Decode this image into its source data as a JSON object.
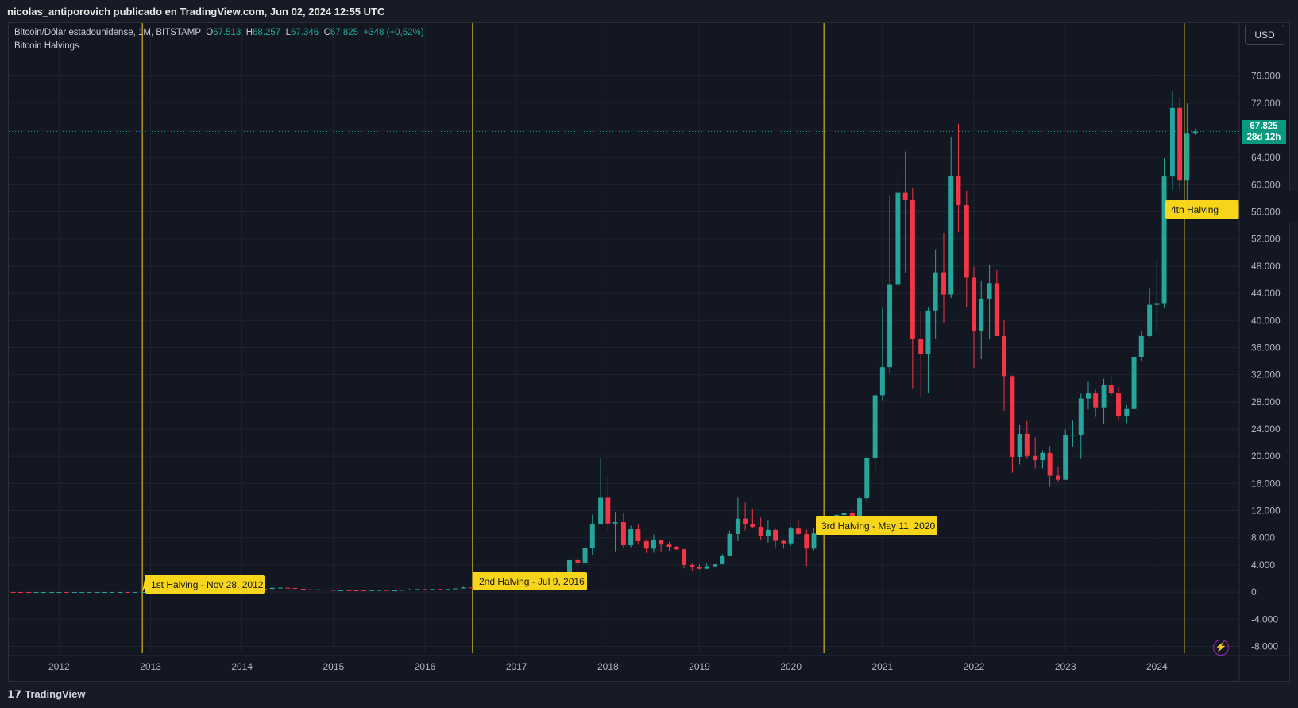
{
  "header": {
    "publisher": "nicolas_antiporovich publicado en TradingView.com, Jun 02, 2024 12:55 UTC"
  },
  "legend": {
    "symbol": "Bitcoin/Dólar estadounidense, 1M, BITSTAMP",
    "o_label": "O",
    "o_value": "67.513",
    "h_label": "H",
    "h_value": "68.257",
    "l_label": "L",
    "l_value": "67.346",
    "c_label": "C",
    "c_value": "67.825",
    "change": "+348 (+0,52%)",
    "indicator": "Bitcoin Halvings"
  },
  "currency_button": "USD",
  "last_price": {
    "price": "67.825",
    "countdown": "28d 12h"
  },
  "footer": {
    "brand": "TradingView"
  },
  "colors": {
    "up": "#26a69a",
    "down": "#f23645",
    "halving": "#f7d51b",
    "price_line": "#089981"
  },
  "chart_data": {
    "type": "candlestick",
    "interval": "1M",
    "y_ticks": [
      76000,
      72000,
      68000,
      64000,
      60000,
      56000,
      52000,
      48000,
      44000,
      40000,
      36000,
      32000,
      28000,
      24000,
      20000,
      16000,
      12000,
      8000,
      4000,
      0,
      -4000,
      -8000
    ],
    "y_tick_labels": [
      "76.000",
      "72.000",
      "",
      "64.000",
      "60.000",
      "56.000",
      "52.000",
      "48.000",
      "44.000",
      "40.000",
      "36.000",
      "32.000",
      "28.000",
      "24.000",
      "20.000",
      "16.000",
      "12.000",
      "8.000",
      "4.000",
      "0",
      "-4.000",
      "-8.000"
    ],
    "ylim": [
      -9000,
      79000
    ],
    "x_ticks": [
      2012,
      2013,
      2014,
      2015,
      2016,
      2017,
      2018,
      2019,
      2020,
      2021,
      2022,
      2023,
      2024
    ],
    "x_tick_labels": [
      "2012",
      "2013",
      "2014",
      "2015",
      "2016",
      "2017",
      "2018",
      "2019",
      "2020",
      "2021",
      "2022",
      "2023",
      "2024"
    ],
    "xlim": [
      2011.45,
      2024.9
    ],
    "last_close": 67825,
    "halvings": [
      {
        "x": 2012.91,
        "label": "1st Halving - Nov 28, 2012"
      },
      {
        "x": 2016.52,
        "label": "2nd Halving - Jul 9, 2016"
      },
      {
        "x": 2020.36,
        "label": "3rd Halving - May 11, 2020"
      },
      {
        "x": 2024.3,
        "label": "4th Halving"
      }
    ],
    "candles": [
      [
        2011.5,
        20,
        0,
        20,
        0
      ],
      [
        2011.58,
        5,
        20,
        0,
        3
      ],
      [
        2011.67,
        5,
        5,
        3,
        3
      ],
      [
        2011.75,
        3,
        5,
        2,
        3
      ],
      [
        2011.83,
        3,
        3,
        2,
        3
      ],
      [
        2011.92,
        3,
        5,
        3,
        5
      ],
      [
        2012.0,
        5,
        7,
        4,
        6
      ],
      [
        2012.08,
        6,
        6,
        4,
        5
      ],
      [
        2012.17,
        5,
        5,
        4,
        5
      ],
      [
        2012.25,
        5,
        5,
        4,
        5
      ],
      [
        2012.33,
        5,
        5,
        5,
        5
      ],
      [
        2012.42,
        5,
        7,
        5,
        7
      ],
      [
        2012.5,
        7,
        10,
        7,
        9
      ],
      [
        2012.58,
        9,
        16,
        7,
        10
      ],
      [
        2012.67,
        10,
        13,
        9,
        12
      ],
      [
        2012.75,
        12,
        13,
        10,
        11
      ],
      [
        2012.83,
        11,
        13,
        10,
        12
      ],
      [
        2012.92,
        12,
        14,
        12,
        13
      ],
      [
        2013.0,
        13,
        21,
        13,
        20
      ],
      [
        2013.08,
        20,
        34,
        19,
        33
      ],
      [
        2013.17,
        33,
        95,
        32,
        93
      ],
      [
        2013.25,
        93,
        260,
        50,
        139
      ],
      [
        2013.33,
        139,
        140,
        100,
        129
      ],
      [
        2013.42,
        129,
        130,
        89,
        97
      ],
      [
        2013.5,
        97,
        112,
        65,
        106
      ],
      [
        2013.58,
        106,
        130,
        99,
        129
      ],
      [
        2013.67,
        129,
        143,
        125,
        141
      ],
      [
        2013.75,
        141,
        215,
        109,
        205
      ],
      [
        2013.83,
        205,
        1160,
        202,
        1130
      ],
      [
        2013.92,
        1130,
        1240,
        520,
        760
      ],
      [
        2014.0,
        760,
        1010,
        740,
        835
      ],
      [
        2014.08,
        835,
        850,
        450,
        570
      ],
      [
        2014.17,
        570,
        680,
        440,
        460
      ],
      [
        2014.25,
        460,
        500,
        340,
        450
      ],
      [
        2014.33,
        450,
        650,
        430,
        630
      ],
      [
        2014.42,
        630,
        680,
        550,
        640
      ],
      [
        2014.5,
        640,
        660,
        570,
        590
      ],
      [
        2014.58,
        590,
        600,
        450,
        480
      ],
      [
        2014.67,
        480,
        490,
        370,
        385
      ],
      [
        2014.75,
        385,
        420,
        300,
        340
      ],
      [
        2014.83,
        340,
        450,
        340,
        375
      ],
      [
        2014.92,
        375,
        380,
        310,
        320
      ],
      [
        2015.0,
        320,
        320,
        160,
        220
      ],
      [
        2015.08,
        220,
        290,
        210,
        255
      ],
      [
        2015.17,
        255,
        300,
        240,
        245
      ],
      [
        2015.25,
        245,
        260,
        215,
        235
      ],
      [
        2015.33,
        235,
        250,
        225,
        230
      ],
      [
        2015.42,
        230,
        270,
        220,
        263
      ],
      [
        2015.5,
        263,
        315,
        255,
        285
      ],
      [
        2015.58,
        285,
        285,
        200,
        230
      ],
      [
        2015.67,
        230,
        250,
        225,
        236
      ],
      [
        2015.75,
        236,
        320,
        235,
        315
      ],
      [
        2015.83,
        315,
        500,
        310,
        378
      ],
      [
        2015.92,
        378,
        465,
        350,
        430
      ],
      [
        2016.0,
        430,
        460,
        350,
        370
      ],
      [
        2016.08,
        370,
        440,
        365,
        437
      ],
      [
        2016.17,
        437,
        440,
        400,
        416
      ],
      [
        2016.25,
        416,
        470,
        415,
        448
      ],
      [
        2016.33,
        448,
        540,
        440,
        530
      ],
      [
        2016.42,
        530,
        780,
        520,
        670
      ],
      [
        2016.5,
        670,
        700,
        600,
        625
      ],
      [
        2016.58,
        625,
        630,
        470,
        575
      ],
      [
        2016.67,
        575,
        620,
        570,
        610
      ],
      [
        2016.75,
        610,
        720,
        605,
        700
      ],
      [
        2016.83,
        700,
        760,
        690,
        745
      ],
      [
        2016.92,
        745,
        970,
        740,
        965
      ],
      [
        2017.0,
        965,
        1150,
        750,
        970
      ],
      [
        2017.08,
        970,
        1200,
        950,
        1190
      ],
      [
        2017.17,
        1190,
        1280,
        900,
        1080
      ],
      [
        2017.25,
        1080,
        1350,
        1070,
        1350
      ],
      [
        2017.33,
        1350,
        2750,
        1350,
        2300
      ],
      [
        2017.42,
        2300,
        3000,
        2150,
        2480
      ],
      [
        2017.5,
        2480,
        2920,
        1830,
        2870
      ],
      [
        2017.58,
        2870,
        4700,
        2700,
        4700
      ],
      [
        2017.67,
        4700,
        5000,
        2970,
        4340
      ],
      [
        2017.75,
        4340,
        6450,
        4100,
        6450
      ],
      [
        2017.83,
        6450,
        11400,
        5500,
        9950
      ],
      [
        2017.92,
        9950,
        19650,
        9950,
        13880
      ],
      [
        2018.0,
        13880,
        17200,
        9000,
        10110
      ],
      [
        2018.08,
        10110,
        11800,
        5900,
        10300
      ],
      [
        2018.17,
        10300,
        11700,
        6400,
        6900
      ],
      [
        2018.25,
        6900,
        9800,
        6500,
        9250
      ],
      [
        2018.33,
        9250,
        10000,
        7000,
        7500
      ],
      [
        2018.42,
        7500,
        7800,
        5750,
        6400
      ],
      [
        2018.5,
        6400,
        8480,
        5800,
        7730
      ],
      [
        2018.58,
        7730,
        7760,
        5880,
        7000
      ],
      [
        2018.67,
        7000,
        7400,
        6100,
        6600
      ],
      [
        2018.75,
        6600,
        6800,
        6200,
        6300
      ],
      [
        2018.83,
        6300,
        6400,
        3500,
        4010
      ],
      [
        2018.92,
        4010,
        4300,
        3120,
        3700
      ],
      [
        2019.0,
        3700,
        4100,
        3350,
        3440
      ],
      [
        2019.08,
        3440,
        4200,
        3390,
        3810
      ],
      [
        2019.17,
        3810,
        4100,
        3730,
        4100
      ],
      [
        2019.25,
        4100,
        5600,
        4080,
        5280
      ],
      [
        2019.33,
        5280,
        9050,
        5280,
        8560
      ],
      [
        2019.42,
        8560,
        13880,
        7500,
        10820
      ],
      [
        2019.5,
        10820,
        13200,
        9100,
        10080
      ],
      [
        2019.58,
        10080,
        12300,
        9370,
        9600
      ],
      [
        2019.67,
        9600,
        10950,
        7700,
        8300
      ],
      [
        2019.75,
        8300,
        10500,
        7300,
        9150
      ],
      [
        2019.83,
        9150,
        9300,
        6500,
        7550
      ],
      [
        2019.92,
        7550,
        7750,
        6400,
        7190
      ],
      [
        2020.0,
        7190,
        9600,
        6850,
        9350
      ],
      [
        2020.08,
        9350,
        10500,
        8400,
        8550
      ],
      [
        2020.17,
        8550,
        9200,
        3850,
        6420
      ],
      [
        2020.25,
        6420,
        9450,
        6150,
        8630
      ],
      [
        2020.33,
        8630,
        10070,
        8100,
        9450
      ],
      [
        2020.42,
        9450,
        10400,
        8900,
        9140
      ],
      [
        2020.5,
        9140,
        11450,
        9000,
        11350
      ],
      [
        2020.58,
        11350,
        12480,
        10500,
        11650
      ],
      [
        2020.67,
        11650,
        12060,
        9900,
        10780
      ],
      [
        2020.75,
        10780,
        14100,
        10400,
        13800
      ],
      [
        2020.83,
        13800,
        19900,
        13200,
        19700
      ],
      [
        2020.92,
        19700,
        29300,
        17600,
        28980
      ],
      [
        2021.0,
        28980,
        41950,
        28130,
        33110
      ],
      [
        2021.08,
        33110,
        58350,
        32300,
        45240
      ],
      [
        2021.17,
        45240,
        61780,
        44950,
        58800
      ],
      [
        2021.25,
        58800,
        64900,
        47000,
        57700
      ],
      [
        2021.33,
        57700,
        59500,
        30000,
        37300
      ],
      [
        2021.42,
        37300,
        41300,
        28800,
        35040
      ],
      [
        2021.5,
        35040,
        42000,
        29300,
        41460
      ],
      [
        2021.58,
        41460,
        50500,
        37300,
        47100
      ],
      [
        2021.67,
        47100,
        52900,
        39600,
        43830
      ],
      [
        2021.75,
        43830,
        67000,
        43300,
        61300
      ],
      [
        2021.83,
        61300,
        69000,
        53000,
        57000
      ],
      [
        2021.92,
        57000,
        59100,
        42000,
        46300
      ],
      [
        2022.0,
        46300,
        47900,
        33000,
        38500
      ],
      [
        2022.08,
        38500,
        45800,
        34300,
        43200
      ],
      [
        2022.17,
        43200,
        48200,
        37200,
        45500
      ],
      [
        2022.25,
        45500,
        47400,
        37700,
        37700
      ],
      [
        2022.33,
        37700,
        40000,
        26700,
        31800
      ],
      [
        2022.42,
        31800,
        31900,
        17600,
        19900
      ],
      [
        2022.5,
        19900,
        24600,
        18800,
        23300
      ],
      [
        2022.58,
        23300,
        25200,
        19600,
        20050
      ],
      [
        2022.67,
        20050,
        22800,
        18200,
        19430
      ],
      [
        2022.75,
        19430,
        20900,
        18200,
        20500
      ],
      [
        2022.83,
        20500,
        21500,
        15500,
        17150
      ],
      [
        2022.92,
        17150,
        18400,
        16300,
        16550
      ],
      [
        2023.0,
        16550,
        23950,
        16500,
        23130
      ],
      [
        2023.08,
        23130,
        25250,
        21400,
        23150
      ],
      [
        2023.17,
        23150,
        29200,
        19600,
        28500
      ],
      [
        2023.25,
        28500,
        31000,
        26900,
        29250
      ],
      [
        2023.33,
        29250,
        29800,
        25800,
        27200
      ],
      [
        2023.42,
        27200,
        31400,
        24800,
        30500
      ],
      [
        2023.5,
        30500,
        31800,
        28900,
        29250
      ],
      [
        2023.58,
        29250,
        30200,
        25200,
        25950
      ],
      [
        2023.67,
        25950,
        27500,
        24900,
        26950
      ],
      [
        2023.75,
        26950,
        35200,
        26600,
        34650
      ],
      [
        2023.83,
        34650,
        38400,
        34100,
        37700
      ],
      [
        2023.92,
        37700,
        44700,
        37600,
        42300
      ],
      [
        2024.0,
        42300,
        48970,
        38500,
        42550
      ],
      [
        2024.08,
        42550,
        63900,
        41900,
        61200
      ],
      [
        2024.17,
        61200,
        73800,
        59200,
        71300
      ],
      [
        2024.25,
        71300,
        72800,
        59300,
        60600
      ],
      [
        2024.33,
        60600,
        71950,
        56500,
        67500
      ],
      [
        2024.42,
        67500,
        68260,
        67340,
        67825
      ]
    ]
  }
}
